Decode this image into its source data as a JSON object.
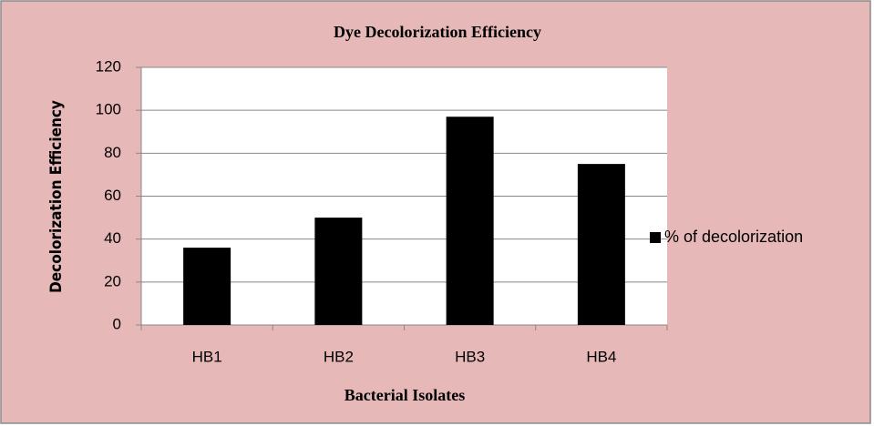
{
  "chart_data": {
    "type": "bar",
    "title": "Dye  Decolorization Efficiency",
    "x_label": "Bacterial Isolates",
    "y_label": "Decolorization Efficiency",
    "categories": [
      "HB1",
      "HB2",
      "HB3",
      "HB4"
    ],
    "series": [
      {
        "name": "% of decolorization",
        "color": "#000000",
        "values": [
          36,
          50,
          97,
          75
        ]
      }
    ],
    "ylim": [
      0,
      120
    ],
    "yticks": [
      0,
      20,
      40,
      60,
      80,
      100,
      120
    ],
    "grid": true,
    "legend": "right"
  }
}
